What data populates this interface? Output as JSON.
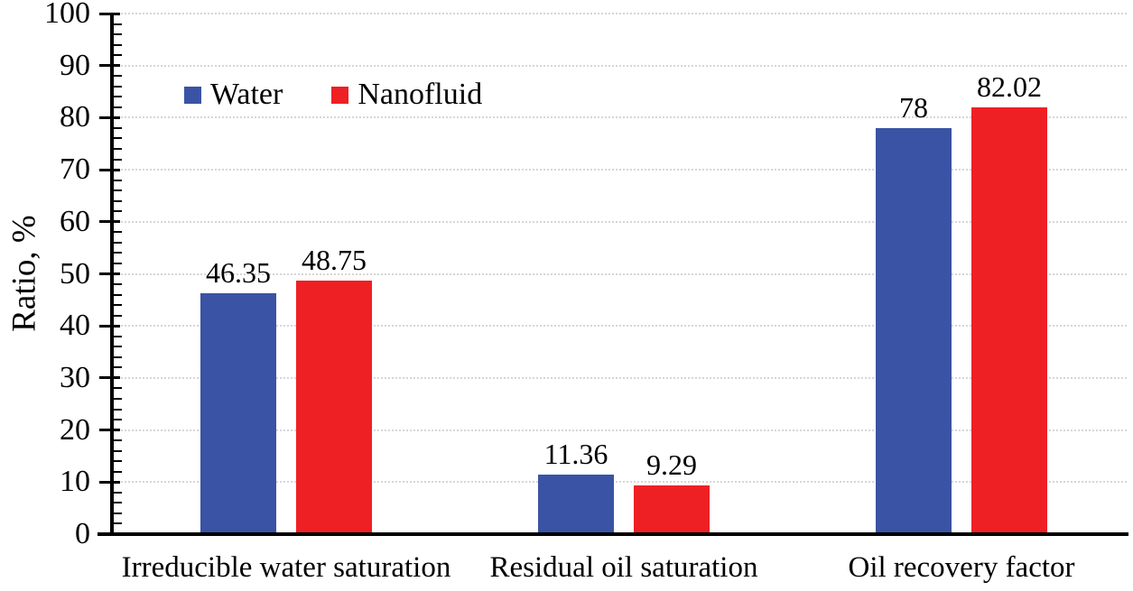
{
  "figure": {
    "background": "#ffffff",
    "text_color": "#000000"
  },
  "chart_data": {
    "type": "bar",
    "title": "",
    "categories": [
      "Irreducible water saturation",
      "Residual oil saturation",
      "Oil recovery factor"
    ],
    "series": [
      {
        "name": "Water",
        "color": "#3A53A4",
        "values": [
          46.35,
          11.36,
          78
        ],
        "value_labels": [
          "46.35",
          "11.36",
          "78"
        ]
      },
      {
        "name": "Nanofluid",
        "color": "#EE2024",
        "values": [
          48.75,
          9.29,
          82.02
        ],
        "value_labels": [
          "48.75",
          "9.29",
          "82.02"
        ]
      }
    ],
    "xlabel": "",
    "ylabel": "Ratio, %",
    "ylim": [
      0,
      100
    ],
    "ytick_step": 10,
    "ytick_labels": [
      "0",
      "10",
      "20",
      "30",
      "40",
      "50",
      "60",
      "70",
      "80",
      "90",
      "100"
    ],
    "minor_tick_step": 2,
    "grid": "horizontal-dotted",
    "gridline_color": "#d6d6d6",
    "axis_color": "#000000",
    "legend": {
      "position": "inside-top-left",
      "entries": [
        "Water",
        "Nanofluid"
      ]
    }
  }
}
